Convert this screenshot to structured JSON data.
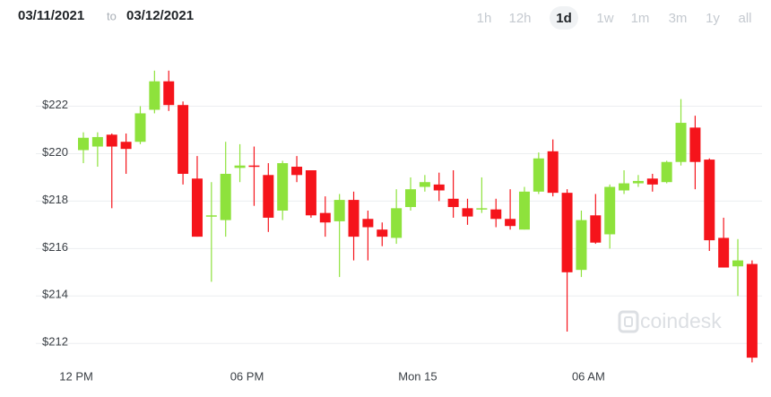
{
  "header": {
    "from": "03/11/2021",
    "separator": "to",
    "to": "03/12/2021"
  },
  "ranges": [
    "1h",
    "12h",
    "1d",
    "1w",
    "1m",
    "3m",
    "1y",
    "all"
  ],
  "active_range": "1d",
  "watermark": "coindesk",
  "chart_data": {
    "type": "candlestick",
    "x": [
      0.25,
      0.75,
      1.25,
      1.75,
      2.25,
      2.75,
      3.25,
      3.75,
      4.25,
      4.75,
      5.25,
      5.75,
      6.25,
      6.75,
      7.25,
      7.75,
      8.25,
      8.75,
      9.25,
      9.75,
      10.25,
      10.75,
      11.25,
      11.75,
      12.25,
      12.75,
      13.25,
      13.75,
      14.25,
      14.75,
      15.25,
      15.75,
      16.25,
      16.75,
      17.25,
      17.75,
      18.25,
      18.75,
      19.25,
      19.75,
      20.25,
      20.75,
      21.25,
      21.75,
      22.25,
      22.75,
      23.25,
      23.75
    ],
    "open": [
      220.15,
      220.3,
      220.8,
      220.5,
      220.5,
      221.85,
      223.05,
      222.05,
      218.95,
      217.35,
      217.2,
      219.4,
      219.5,
      219.1,
      217.6,
      219.45,
      219.3,
      217.5,
      217.15,
      218.05,
      217.25,
      216.8,
      216.45,
      217.75,
      218.6,
      218.7,
      218.1,
      217.7,
      217.65,
      217.65,
      217.25,
      216.8,
      218.4,
      220.1,
      218.35,
      215.1,
      217.4,
      216.6,
      218.45,
      218.75,
      218.95,
      218.8,
      219.65,
      221.1,
      219.75,
      216.45,
      215.25,
      215.35
    ],
    "high": [
      220.9,
      220.9,
      220.85,
      220.85,
      222.0,
      223.5,
      223.5,
      222.2,
      219.9,
      218.8,
      220.5,
      220.4,
      220.3,
      219.6,
      219.7,
      219.9,
      219.3,
      218.2,
      218.3,
      218.4,
      217.6,
      217.1,
      218.5,
      219.0,
      219.1,
      219.2,
      219.3,
      218.1,
      219.0,
      218.1,
      218.5,
      218.6,
      220.05,
      220.6,
      218.5,
      217.6,
      218.3,
      218.7,
      219.3,
      219.1,
      219.15,
      219.7,
      222.3,
      221.6,
      219.8,
      217.3,
      216.4,
      215.5
    ],
    "low": [
      219.6,
      219.45,
      217.7,
      219.15,
      220.4,
      221.7,
      221.8,
      218.7,
      216.5,
      214.6,
      216.5,
      218.8,
      217.8,
      216.7,
      217.2,
      218.8,
      217.3,
      216.5,
      214.8,
      215.5,
      215.5,
      216.1,
      216.2,
      217.6,
      218.4,
      218.0,
      217.3,
      217.0,
      217.5,
      216.9,
      216.8,
      216.8,
      218.3,
      218.2,
      212.5,
      214.8,
      216.2,
      216.0,
      218.3,
      218.6,
      218.4,
      218.75,
      219.5,
      218.5,
      215.9,
      215.2,
      214.0,
      211.2
    ],
    "close": [
      220.67,
      220.7,
      220.3,
      220.2,
      221.7,
      223.05,
      222.05,
      219.15,
      216.5,
      217.4,
      219.15,
      219.5,
      219.45,
      217.3,
      219.6,
      219.1,
      217.4,
      217.1,
      218.05,
      216.5,
      216.9,
      216.5,
      217.7,
      218.5,
      218.8,
      218.45,
      217.75,
      217.35,
      217.7,
      217.25,
      216.95,
      218.4,
      219.8,
      218.35,
      215.0,
      217.2,
      216.25,
      218.6,
      218.75,
      218.85,
      218.7,
      219.65,
      221.3,
      219.65,
      216.35,
      215.2,
      215.5,
      211.4
    ],
    "up_color": "#8ee23c",
    "down_color": "#f5141b",
    "xlim": [
      -2.05,
      24.1
    ],
    "xticks": [
      {
        "value": 0,
        "label": "12 PM"
      },
      {
        "value": 6,
        "label": "06 PM"
      },
      {
        "value": 12,
        "label": "Mon 15"
      },
      {
        "value": 18,
        "label": "06 AM"
      }
    ],
    "ylim": [
      210.8,
      224.4
    ],
    "yticks": [
      {
        "value": 212,
        "label": "$212"
      },
      {
        "value": 214,
        "label": "$214"
      },
      {
        "value": 216,
        "label": "$216"
      },
      {
        "value": 218,
        "label": "$218"
      },
      {
        "value": 220,
        "label": "$220"
      },
      {
        "value": 222,
        "label": "$222"
      }
    ],
    "grid": true
  }
}
